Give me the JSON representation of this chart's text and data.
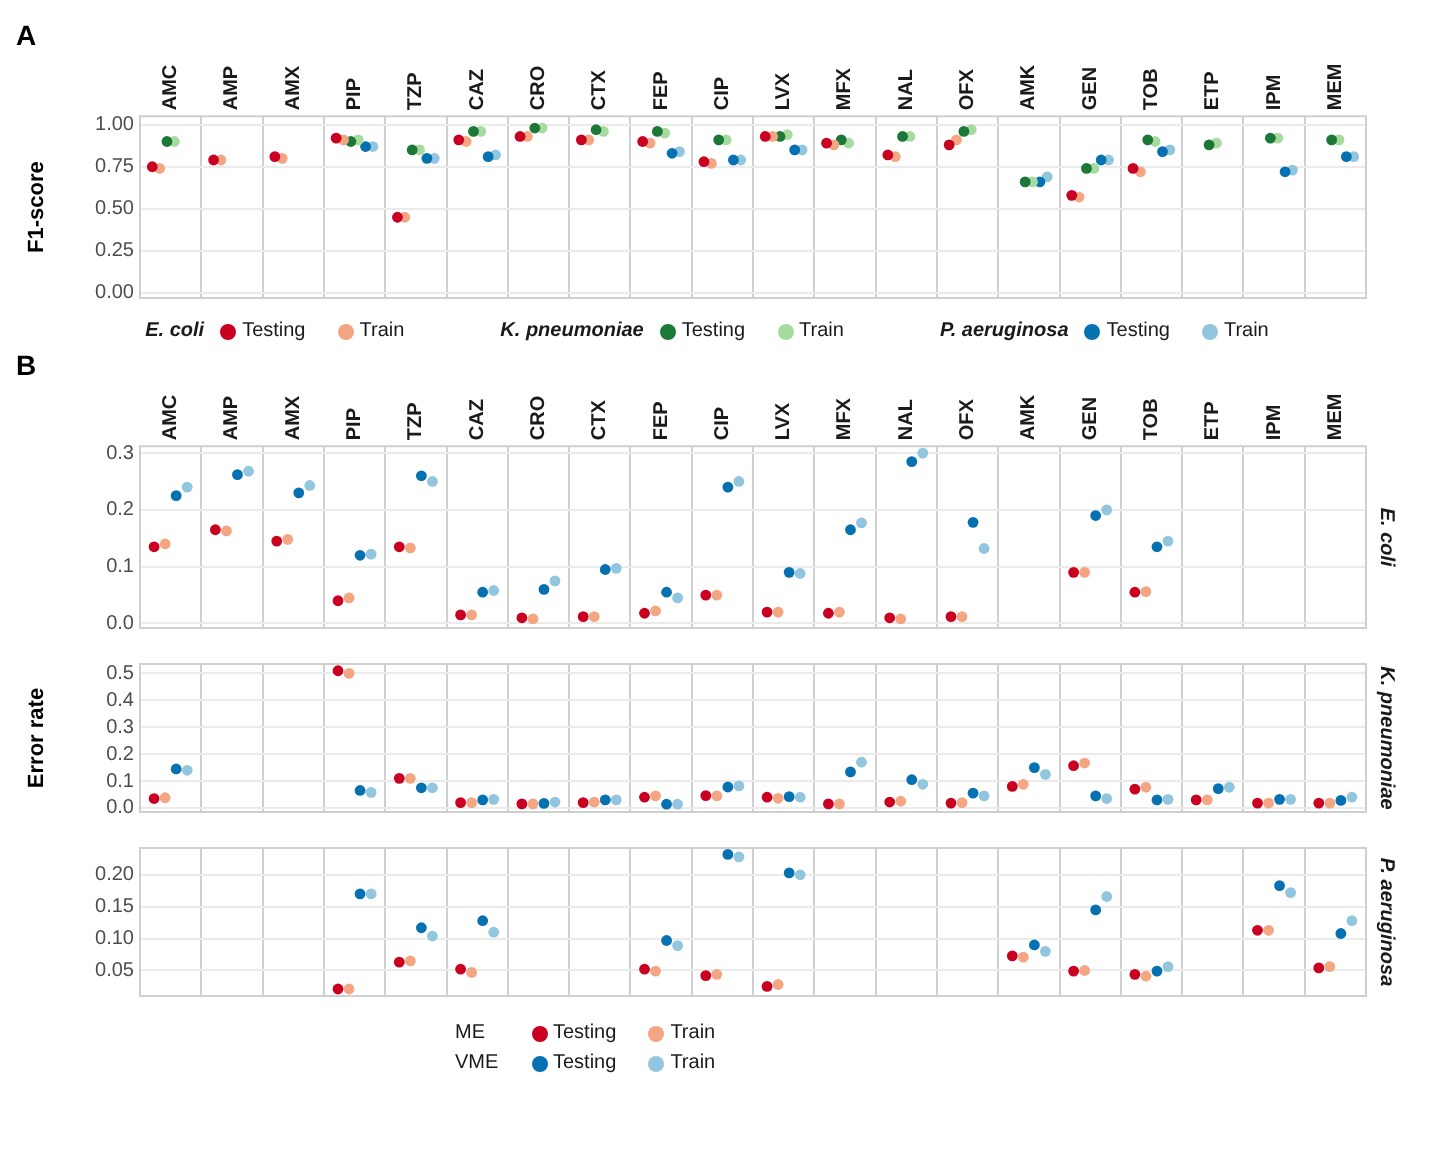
{
  "chart_data": [
    {
      "type": "scatter",
      "title": "A",
      "ylabel": "F1-score",
      "categories": [
        "AMC",
        "AMP",
        "AMX",
        "PIP",
        "TZP",
        "CAZ",
        "CRO",
        "CTX",
        "FEP",
        "CIP",
        "LVX",
        "MFX",
        "NAL",
        "OFX",
        "AMK",
        "GEN",
        "TOB",
        "ETP",
        "IPM",
        "MEM"
      ],
      "series": [
        {
          "name": "Testing",
          "color": "#ca0020",
          "values": [
            0.75,
            0.79,
            0.81,
            0.92,
            0.45,
            0.91,
            0.93,
            0.91,
            0.9,
            0.78,
            0.93,
            0.89,
            0.82,
            0.88,
            null,
            0.58,
            0.74,
            null,
            null,
            null
          ]
        },
        {
          "name": "Train",
          "color": "#f4a582",
          "values": [
            0.74,
            0.79,
            0.8,
            0.91,
            0.45,
            0.9,
            0.93,
            0.91,
            0.89,
            0.77,
            0.93,
            0.88,
            0.81,
            0.91,
            null,
            0.57,
            0.72,
            null,
            null,
            null
          ]
        },
        {
          "name": "Testing",
          "color": "#1b7837",
          "values": [
            0.9,
            null,
            null,
            0.9,
            0.85,
            0.96,
            0.98,
            0.97,
            0.96,
            0.91,
            0.93,
            0.91,
            0.93,
            0.96,
            0.66,
            0.74,
            0.91,
            0.88,
            0.92,
            0.91
          ]
        },
        {
          "name": "Train",
          "color": "#a6dba0",
          "values": [
            0.9,
            null,
            null,
            0.91,
            0.85,
            0.96,
            0.98,
            0.96,
            0.95,
            0.91,
            0.94,
            0.89,
            0.93,
            0.97,
            0.66,
            0.74,
            0.9,
            0.89,
            0.92,
            0.91
          ]
        },
        {
          "name": "Testing",
          "color": "#0571b0",
          "values": [
            null,
            null,
            null,
            0.87,
            0.8,
            0.81,
            null,
            null,
            0.83,
            0.79,
            0.85,
            null,
            null,
            null,
            0.66,
            0.79,
            0.84,
            null,
            0.72,
            0.81
          ]
        },
        {
          "name": "Train",
          "color": "#92c5de",
          "values": [
            null,
            null,
            null,
            0.87,
            0.8,
            0.82,
            null,
            null,
            0.84,
            0.79,
            0.85,
            null,
            null,
            null,
            0.69,
            0.79,
            0.85,
            null,
            0.73,
            0.81
          ]
        }
      ],
      "ylim": [
        -0.03,
        1.05
      ],
      "yticks": [
        {
          "value": 0,
          "label": "0.00"
        },
        0.25,
        {
          "value": 0.5,
          "label": "0.50"
        },
        0.75,
        {
          "value": 1,
          "label": "1.00"
        }
      ],
      "grid": true,
      "marker": "circle",
      "legend": "bottom",
      "annotations": [
        "E. coli",
        "K. pneumoniae",
        "P. aeruginosa"
      ]
    },
    {
      "type": "scatter",
      "title": "B",
      "y2label": "E. coli",
      "categories": [
        "AMC",
        "AMP",
        "AMX",
        "PIP",
        "TZP",
        "CAZ",
        "CRO",
        "CTX",
        "FEP",
        "CIP",
        "LVX",
        "MFX",
        "NAL",
        "OFX",
        "AMK",
        "GEN",
        "TOB",
        "ETP",
        "IPM",
        "MEM"
      ],
      "series": [
        {
          "color": "#ca0020",
          "values": [
            0.135,
            0.165,
            0.145,
            0.04,
            0.135,
            0.015,
            0.01,
            0.012,
            0.018,
            0.05,
            0.02,
            0.018,
            0.01,
            0.012,
            null,
            0.09,
            0.055,
            null,
            null,
            null
          ]
        },
        {
          "color": "#f4a582",
          "values": [
            0.14,
            0.163,
            0.148,
            0.045,
            0.133,
            0.015,
            0.008,
            0.012,
            0.022,
            0.05,
            0.02,
            0.02,
            0.008,
            0.012,
            null,
            0.09,
            0.056,
            null,
            null,
            null
          ]
        },
        {
          "color": "#0571b0",
          "values": [
            0.225,
            0.262,
            0.23,
            0.12,
            0.26,
            0.055,
            0.06,
            0.095,
            0.055,
            0.24,
            0.09,
            0.165,
            0.285,
            0.178,
            null,
            0.19,
            0.135,
            null,
            null,
            null
          ]
        },
        {
          "color": "#92c5de",
          "values": [
            0.24,
            0.268,
            0.243,
            0.122,
            0.25,
            0.058,
            0.075,
            0.097,
            0.045,
            0.25,
            0.088,
            0.177,
            0.3,
            0.132,
            null,
            0.2,
            0.145,
            null,
            null,
            null
          ]
        }
      ],
      "ylim": [
        -0.008,
        0.312
      ],
      "yticks": [
        {
          "value": 0,
          "label": "0.0"
        },
        0.1,
        0.2,
        0.3
      ],
      "grid": true,
      "marker": "circle"
    },
    {
      "type": "scatter",
      "y2label": "K. pneumoniae",
      "ylabel": "Error rate",
      "categories": [
        null,
        null,
        null,
        null,
        null,
        null,
        null,
        null,
        null,
        null,
        null,
        null,
        null,
        null,
        null,
        null,
        null,
        null,
        null,
        null
      ],
      "series": [
        {
          "color": "#ca0020",
          "values": [
            0.035,
            null,
            null,
            0.51,
            0.11,
            0.02,
            0.015,
            0.02,
            0.04,
            0.046,
            0.04,
            0.015,
            0.022,
            0.018,
            0.08,
            0.157,
            0.07,
            0.03,
            0.018,
            0.018
          ]
        },
        {
          "color": "#f4a582",
          "values": [
            0.038,
            null,
            null,
            0.5,
            0.11,
            0.02,
            0.015,
            0.022,
            0.045,
            0.045,
            0.036,
            0.015,
            0.025,
            0.02,
            0.088,
            0.167,
            0.077,
            0.03,
            0.018,
            0.018
          ]
        },
        {
          "color": "#0571b0",
          "values": [
            0.145,
            null,
            null,
            0.065,
            0.075,
            0.03,
            0.017,
            0.03,
            0.014,
            0.078,
            0.042,
            0.134,
            0.105,
            0.055,
            0.15,
            0.045,
            0.03,
            0.072,
            0.032,
            0.028
          ]
        },
        {
          "color": "#92c5de",
          "values": [
            0.14,
            null,
            null,
            0.058,
            0.075,
            0.032,
            0.022,
            0.03,
            0.014,
            0.082,
            0.04,
            0.17,
            0.088,
            0.045,
            0.125,
            0.035,
            0.032,
            0.077,
            0.032,
            0.04
          ]
        }
      ],
      "ylim": [
        -0.015,
        0.535
      ],
      "yticks": [
        {
          "value": 0,
          "label": "0.0"
        },
        0.1,
        0.2,
        0.3,
        0.4,
        0.5
      ],
      "grid": true,
      "marker": "circle",
      "tick_labels": "y"
    },
    {
      "type": "scatter",
      "y2label": "P. aeruginosa",
      "categories": [
        null,
        null,
        null,
        null,
        null,
        null,
        null,
        null,
        null,
        null,
        null,
        null,
        null,
        null,
        null,
        null,
        null,
        null,
        null,
        null
      ],
      "series": [
        {
          "name": "Testing",
          "color": "#ca0020",
          "values": [
            null,
            null,
            null,
            0.021,
            0.063,
            0.052,
            null,
            null,
            0.052,
            0.042,
            0.025,
            null,
            null,
            null,
            0.073,
            0.049,
            0.044,
            null,
            0.113,
            0.054
          ]
        },
        {
          "name": "Train",
          "color": "#f4a582",
          "values": [
            null,
            null,
            null,
            0.021,
            0.065,
            0.047,
            null,
            null,
            0.049,
            0.044,
            0.028,
            null,
            null,
            null,
            0.071,
            0.05,
            0.041,
            null,
            0.113,
            0.056
          ]
        },
        {
          "name": "Testing",
          "color": "#0571b0",
          "values": [
            null,
            null,
            null,
            0.17,
            0.117,
            0.128,
            null,
            null,
            0.097,
            0.232,
            0.203,
            null,
            null,
            null,
            0.09,
            0.145,
            0.049,
            null,
            0.183,
            0.108
          ]
        },
        {
          "name": "Train",
          "color": "#92c5de",
          "values": [
            null,
            null,
            null,
            0.17,
            0.104,
            0.11,
            null,
            null,
            0.089,
            0.228,
            0.2,
            null,
            null,
            null,
            0.08,
            0.166,
            0.056,
            null,
            0.172,
            0.128
          ]
        }
      ],
      "ylim": [
        0.01,
        0.242
      ],
      "yticks": [
        0.05,
        {
          "value": 0.1,
          "label": "0.10"
        },
        0.15,
        {
          "value": 0.2,
          "label": "0.20"
        }
      ],
      "grid": true,
      "marker": "circle",
      "tick_labels": "y",
      "legend": "bottom",
      "annotations": [
        "ME",
        "VME"
      ]
    }
  ]
}
